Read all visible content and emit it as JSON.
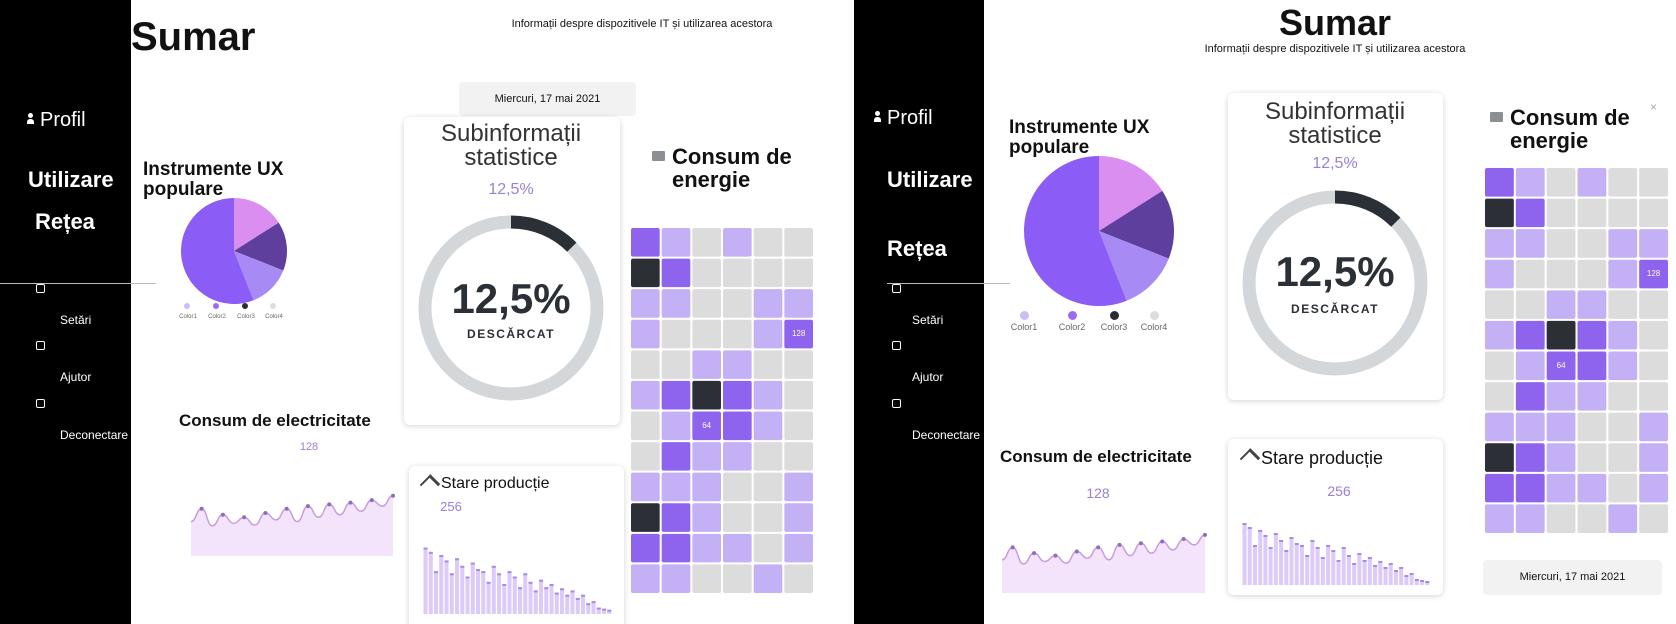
{
  "panels": [
    {
      "title": "Sumar",
      "subtitle": "Informații despre dispozitivele IT și utilizarea acestora",
      "date": "Miercuri, 17 mai 2021",
      "nav": [
        "Profil",
        "Utilizare",
        "Rețea"
      ],
      "menu": [
        "Setări",
        "Ajutor",
        "Deconectare"
      ],
      "ux_title": "Instrumente UX populare",
      "legend": [
        "Color1",
        "Color2",
        "Color3",
        "Color4"
      ],
      "stats_title": "Subinformații statistice",
      "stats_small": "12,5%",
      "stats_big": "12,5%",
      "stats_label": "DESCĂRCAT",
      "electricity_title": "Consum de electricitate",
      "electricity_value": "128",
      "production_title": "Stare producție",
      "production_value": "256",
      "energy_title": "Consum de energie"
    },
    {
      "title": "Sumar",
      "subtitle": "Informații despre dispozitivele IT și utilizarea acestora",
      "date": "Miercuri, 17 mai 2021",
      "nav": [
        "Profil",
        "Utilizare",
        "Rețea"
      ],
      "menu": [
        "Setări",
        "Ajutor",
        "Deconectare"
      ],
      "ux_title": "Instrumente UX populare",
      "legend": [
        "Color1",
        "Color2",
        "Color3",
        "Color4"
      ],
      "stats_title": "Subinformații statistice",
      "stats_small": "12,5%",
      "stats_big": "12,5%",
      "stats_label": "DESCĂRCAT",
      "electricity_title": "Consum de electricitate",
      "electricity_value": "128",
      "production_title": "Stare producție",
      "production_value": "256",
      "energy_title": "Consum de energie"
    }
  ],
  "charts": {
    "pie": {
      "values": [
        16,
        15,
        13,
        56
      ],
      "colors": [
        "#d98ef0",
        "#5e3f9e",
        "#a88af5",
        "#8b5cf6"
      ],
      "legend_colors": [
        "#cdbcf5",
        "#9b6cf0",
        "#2b2d33",
        "#dddddd"
      ]
    },
    "donut_percent": 12.5,
    "line": {
      "values": [
        40,
        55,
        35,
        48,
        38,
        45,
        36,
        50,
        42,
        55,
        40,
        58,
        45,
        60,
        48,
        62,
        52,
        65,
        58,
        70
      ],
      "ylim": [
        0,
        100
      ]
    },
    "bars": {
      "values": [
        62,
        58,
        40,
        55,
        50,
        38,
        52,
        45,
        35,
        48,
        42,
        40,
        30,
        45,
        38,
        28,
        40,
        35,
        25,
        38,
        30,
        22,
        32,
        25,
        28,
        20,
        24,
        18,
        22,
        15,
        18,
        10,
        12,
        6,
        5,
        4
      ],
      "ylim": [
        0,
        70
      ]
    },
    "energy": {
      "colors": [
        "#dcdcdc",
        "#c4b0f5",
        "#8e63ee",
        "#2d2f36"
      ],
      "cells": [
        [
          2,
          1,
          0,
          1,
          0,
          0
        ],
        [
          3,
          2,
          0,
          0,
          0,
          0
        ],
        [
          1,
          1,
          0,
          0,
          1,
          1
        ],
        [
          1,
          0,
          0,
          0,
          1,
          2
        ],
        [
          0,
          0,
          1,
          1,
          0,
          0
        ],
        [
          1,
          2,
          3,
          2,
          1,
          0
        ],
        [
          0,
          1,
          2,
          2,
          1,
          0
        ],
        [
          0,
          2,
          1,
          1,
          0,
          0
        ],
        [
          1,
          1,
          1,
          0,
          0,
          1
        ],
        [
          3,
          2,
          1,
          0,
          0,
          1
        ],
        [
          2,
          2,
          1,
          1,
          0,
          1
        ],
        [
          1,
          1,
          0,
          0,
          1,
          0
        ]
      ],
      "labels": [
        {
          "row": 3,
          "col": 5,
          "label": "128"
        },
        {
          "row": 6,
          "col": 2,
          "label": "64"
        }
      ]
    }
  }
}
